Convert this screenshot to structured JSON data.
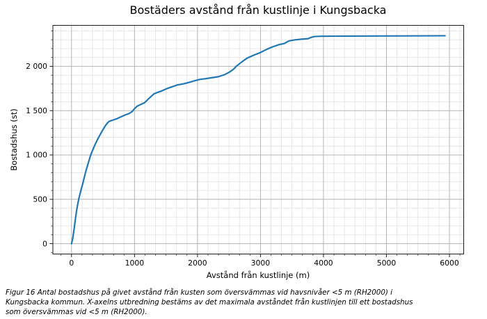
{
  "figure": {
    "caption_lines": [
      "Figur 16 Antal bostadshus på givet avstånd från kusten som översvämmas vid havsnivåer <5 m (RH2000) i",
      "Kungsbacka kommun. X-axelns utbredning bestäms av det maximala avståndet från kustlinjen till ett bostadshus",
      "som översvämmas vid <5 m (RH2000)."
    ]
  },
  "chart_data": {
    "type": "line",
    "title": "Bostäders avstånd från kustlinje i Kungsbacka",
    "xlabel": "Avstånd från kustlinje (m)",
    "ylabel": "Bostadshus (st)",
    "xlim": [
      -296,
      6226
    ],
    "ylim": [
      -117,
      2462
    ],
    "x_tick_values": [
      0,
      1000,
      2000,
      3000,
      4000,
      5000,
      6000
    ],
    "x_tick_labels": [
      "0",
      "1000",
      "2000",
      "3000",
      "4000",
      "5000",
      "6000"
    ],
    "y_tick_values": [
      0,
      500,
      1000,
      1500,
      2000
    ],
    "y_tick_labels": [
      "0",
      "500",
      "1 000",
      "1 500",
      "2 000"
    ],
    "x_minor_step": 166.6667,
    "y_minor_step": 100,
    "grid": "major+minor",
    "legend": "none",
    "colors": {
      "line": "#1f77b4",
      "grid_major": "#b5b5b5",
      "grid_minor": "#e4e4e4",
      "spine": "#1a1a1a",
      "tick": "#1a1a1a",
      "text": "#000000"
    },
    "series": [
      {
        "name": "Bostadshus",
        "points": [
          [
            0,
            0
          ],
          [
            20,
            60
          ],
          [
            40,
            160
          ],
          [
            60,
            270
          ],
          [
            80,
            370
          ],
          [
            100,
            450
          ],
          [
            120,
            520
          ],
          [
            140,
            575
          ],
          [
            160,
            630
          ],
          [
            180,
            680
          ],
          [
            200,
            740
          ],
          [
            225,
            810
          ],
          [
            250,
            870
          ],
          [
            275,
            930
          ],
          [
            300,
            990
          ],
          [
            330,
            1045
          ],
          [
            370,
            1112
          ],
          [
            420,
            1185
          ],
          [
            480,
            1262
          ],
          [
            535,
            1328
          ],
          [
            575,
            1365
          ],
          [
            605,
            1382
          ],
          [
            655,
            1393
          ],
          [
            715,
            1408
          ],
          [
            775,
            1427
          ],
          [
            845,
            1450
          ],
          [
            915,
            1468
          ],
          [
            960,
            1488
          ],
          [
            1000,
            1522
          ],
          [
            1045,
            1552
          ],
          [
            1095,
            1568
          ],
          [
            1160,
            1590
          ],
          [
            1215,
            1628
          ],
          [
            1260,
            1658
          ],
          [
            1310,
            1690
          ],
          [
            1365,
            1706
          ],
          [
            1430,
            1722
          ],
          [
            1505,
            1746
          ],
          [
            1590,
            1768
          ],
          [
            1680,
            1790
          ],
          [
            1780,
            1803
          ],
          [
            1880,
            1822
          ],
          [
            1960,
            1838
          ],
          [
            2035,
            1852
          ],
          [
            2130,
            1861
          ],
          [
            2230,
            1872
          ],
          [
            2330,
            1883
          ],
          [
            2430,
            1906
          ],
          [
            2510,
            1936
          ],
          [
            2570,
            1966
          ],
          [
            2618,
            2002
          ],
          [
            2700,
            2048
          ],
          [
            2790,
            2094
          ],
          [
            2900,
            2128
          ],
          [
            3000,
            2156
          ],
          [
            3100,
            2192
          ],
          [
            3200,
            2222
          ],
          [
            3300,
            2246
          ],
          [
            3380,
            2258
          ],
          [
            3450,
            2286
          ],
          [
            3540,
            2298
          ],
          [
            3650,
            2306
          ],
          [
            3755,
            2312
          ],
          [
            3800,
            2326
          ],
          [
            3860,
            2336
          ],
          [
            3950,
            2339
          ],
          [
            4100,
            2340
          ],
          [
            4400,
            2341
          ],
          [
            4800,
            2342
          ],
          [
            5200,
            2343
          ],
          [
            5600,
            2344
          ],
          [
            5930,
            2345
          ]
        ]
      }
    ]
  }
}
